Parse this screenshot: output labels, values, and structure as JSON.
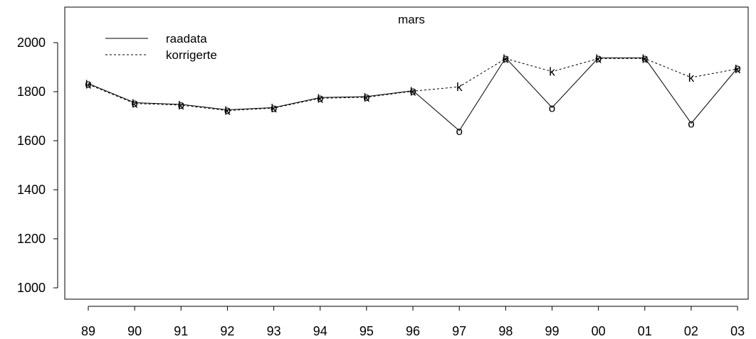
{
  "chart_data": {
    "type": "line",
    "title": "mars",
    "xlabel": "",
    "ylabel": "",
    "categories": [
      "89",
      "90",
      "91",
      "92",
      "93",
      "94",
      "95",
      "96",
      "97",
      "98",
      "99",
      "00",
      "01",
      "02",
      "03"
    ],
    "ylim": [
      950,
      2150
    ],
    "yticks": [
      1000,
      1200,
      1400,
      1600,
      1800,
      2000
    ],
    "grid": false,
    "legend_position": "top-left",
    "series": [
      {
        "name": "raadata",
        "marker": "o",
        "line_style": "solid",
        "values": [
          1833,
          1755,
          1748,
          1726,
          1735,
          1776,
          1780,
          1804,
          1641,
          1938,
          1735,
          1938,
          1938,
          1671,
          1897
        ]
      },
      {
        "name": "korrigerte",
        "marker": "k",
        "line_style": "dotted",
        "values": [
          1830,
          1752,
          1745,
          1723,
          1733,
          1773,
          1777,
          1802,
          1820,
          1935,
          1882,
          1935,
          1935,
          1858,
          1893
        ]
      }
    ]
  }
}
